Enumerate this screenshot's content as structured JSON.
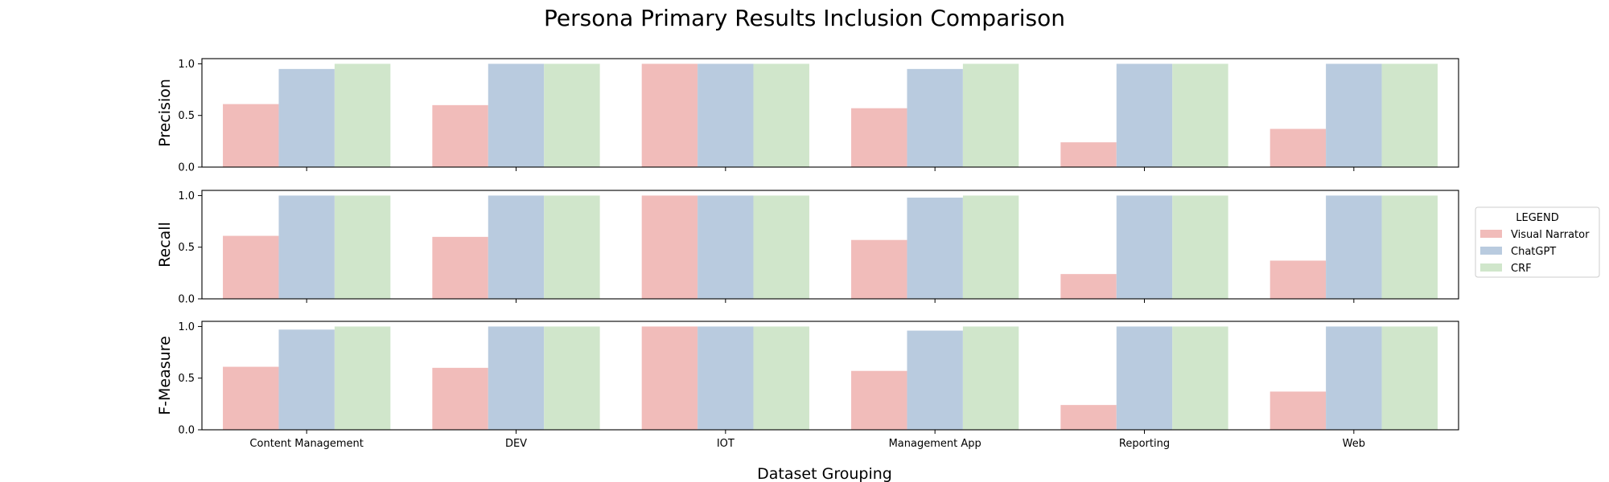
{
  "chart_data": {
    "type": "bar",
    "title": "Persona Primary Results Inclusion Comparison",
    "xlabel": "Dataset Grouping",
    "categories": [
      "Content Management",
      "DEV",
      "IOT",
      "Management App",
      "Reporting",
      "Web"
    ],
    "legend": {
      "title": "LEGEND",
      "placement": "right",
      "entries": [
        "Visual Narrator",
        "ChatGPT",
        "CRF"
      ]
    },
    "colors": {
      "Visual Narrator": "#f1bcba",
      "ChatGPT": "#b9cbdf",
      "CRF": "#d0e6cb"
    },
    "yticks": [
      "0.0",
      "0.5",
      "1.0"
    ],
    "ylim": [
      0,
      1.05
    ],
    "grid": false,
    "panels": [
      {
        "ylabel": "Precision",
        "series": [
          {
            "name": "Visual Narrator",
            "values": [
              0.61,
              0.6,
              1.0,
              0.57,
              0.24,
              0.37
            ]
          },
          {
            "name": "ChatGPT",
            "values": [
              0.95,
              1.0,
              1.0,
              0.95,
              1.0,
              1.0
            ]
          },
          {
            "name": "CRF",
            "values": [
              1.0,
              1.0,
              1.0,
              1.0,
              1.0,
              1.0
            ]
          }
        ]
      },
      {
        "ylabel": "Recall",
        "series": [
          {
            "name": "Visual Narrator",
            "values": [
              0.61,
              0.6,
              1.0,
              0.57,
              0.24,
              0.37
            ]
          },
          {
            "name": "ChatGPT",
            "values": [
              1.0,
              1.0,
              1.0,
              0.98,
              1.0,
              1.0
            ]
          },
          {
            "name": "CRF",
            "values": [
              1.0,
              1.0,
              1.0,
              1.0,
              1.0,
              1.0
            ]
          }
        ]
      },
      {
        "ylabel": "F-Measure",
        "series": [
          {
            "name": "Visual Narrator",
            "values": [
              0.61,
              0.6,
              1.0,
              0.57,
              0.24,
              0.37
            ]
          },
          {
            "name": "ChatGPT",
            "values": [
              0.97,
              1.0,
              1.0,
              0.96,
              1.0,
              1.0
            ]
          },
          {
            "name": "CRF",
            "values": [
              1.0,
              1.0,
              1.0,
              1.0,
              1.0,
              1.0
            ]
          }
        ]
      }
    ]
  }
}
